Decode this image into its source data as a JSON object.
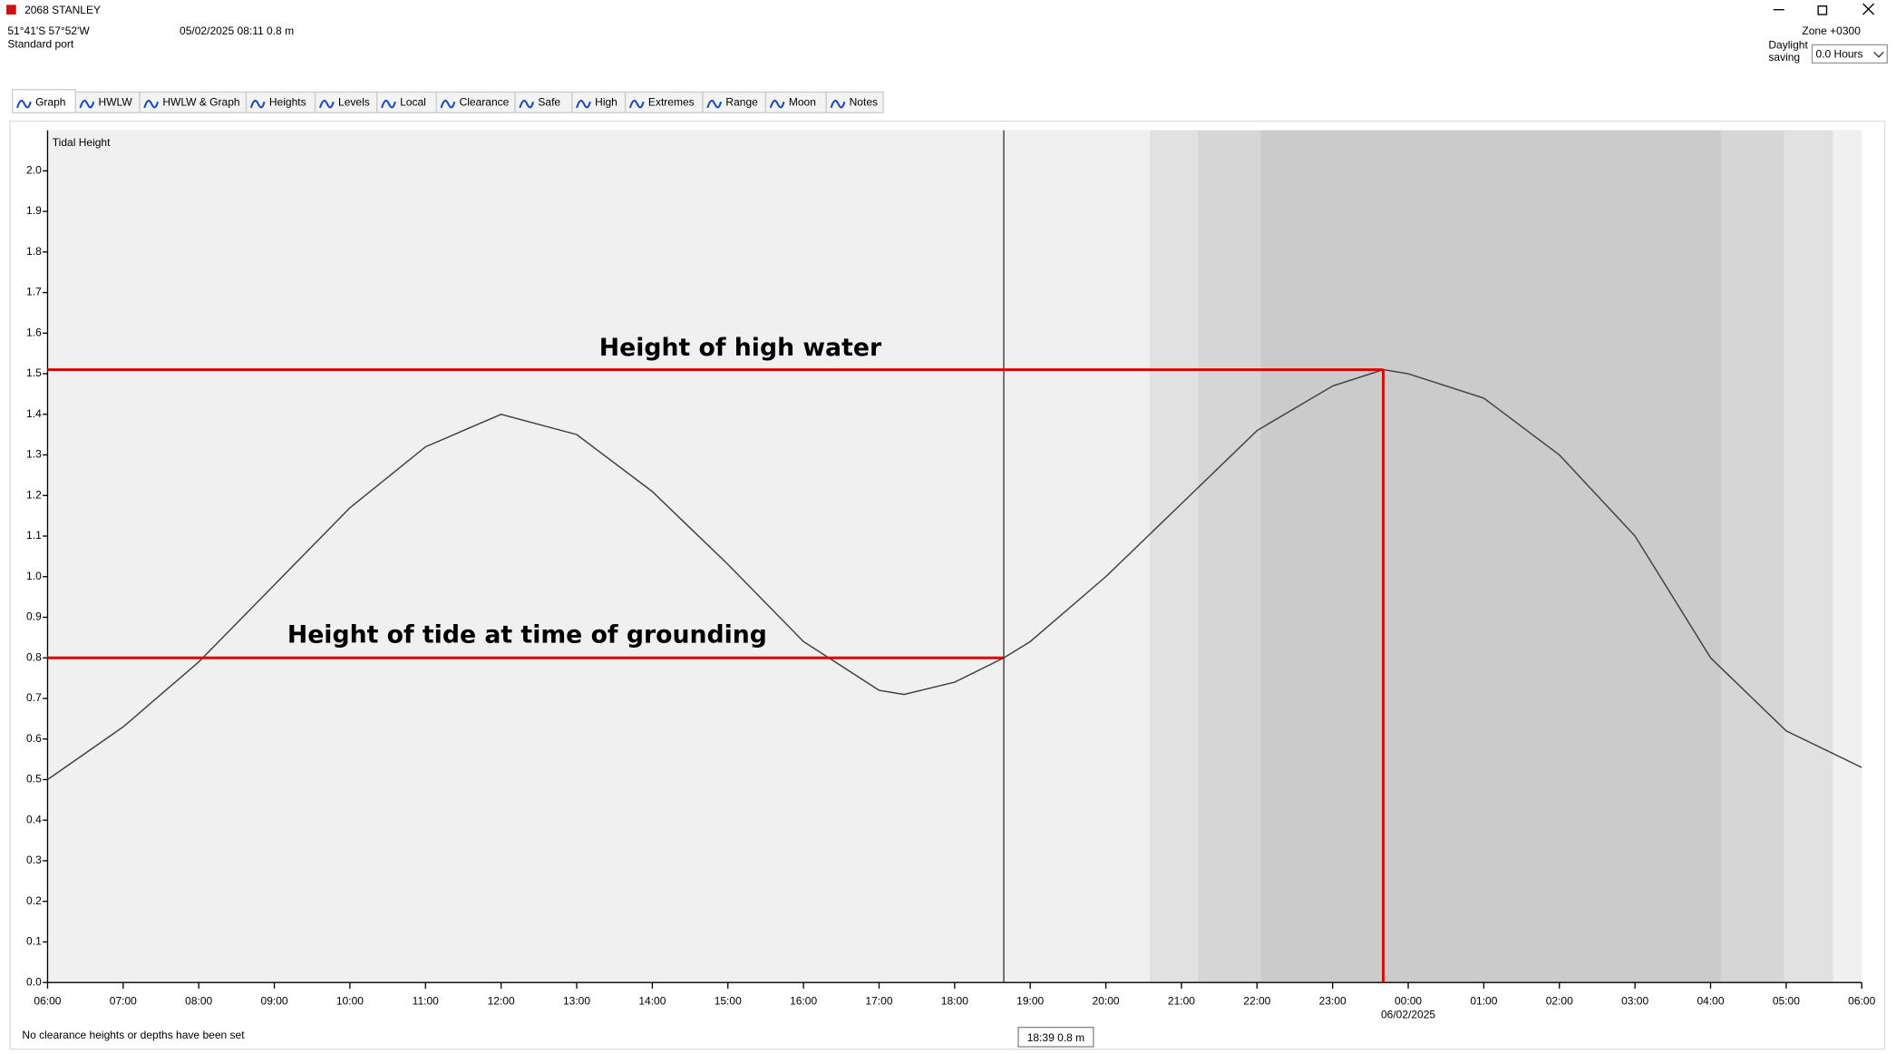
{
  "window": {
    "title": "2068  STANLEY"
  },
  "header": {
    "position": "51°41'S 57°52'W",
    "port_type": "Standard port",
    "reading": "05/02/2025 08:11  0.8 m",
    "zone": "Zone  +0300",
    "daylight_label": "Daylight saving",
    "daylight_value": "0.0 Hours"
  },
  "tabs": [
    "Graph",
    "HWLW",
    "HWLW & Graph",
    "Heights",
    "Levels",
    "Local",
    "Clearance",
    "Safe",
    "High",
    "Extremes",
    "Range",
    "Moon",
    "Notes"
  ],
  "chart_data": {
    "type": "line",
    "y_label": "Tidal Height",
    "color": "#404040",
    "x": [
      0,
      1,
      2,
      3,
      4,
      5,
      6,
      7,
      8,
      9,
      10,
      11,
      11.33,
      12,
      12.65,
      13,
      14,
      15,
      16,
      17,
      17.67,
      18,
      19,
      20,
      21,
      22,
      23,
      24
    ],
    "values": [
      0.5,
      0.63,
      0.79,
      0.98,
      1.17,
      1.32,
      1.4,
      1.35,
      1.21,
      1.03,
      0.84,
      0.72,
      0.71,
      0.74,
      0.8,
      0.84,
      1.0,
      1.18,
      1.36,
      1.47,
      1.51,
      1.5,
      1.44,
      1.3,
      1.1,
      0.8,
      0.62,
      0.53
    ],
    "xlim": [
      0,
      24
    ],
    "ylim": [
      0,
      2.1
    ],
    "xticks": [
      {
        "value": 0,
        "label": "06:00"
      },
      {
        "value": 1,
        "label": "07:00"
      },
      {
        "value": 2,
        "label": "08:00"
      },
      {
        "value": 3,
        "label": "09:00"
      },
      {
        "value": 4,
        "label": "10:00"
      },
      {
        "value": 5,
        "label": "11:00"
      },
      {
        "value": 6,
        "label": "12:00"
      },
      {
        "value": 7,
        "label": "13:00"
      },
      {
        "value": 8,
        "label": "14:00"
      },
      {
        "value": 9,
        "label": "15:00"
      },
      {
        "value": 10,
        "label": "16:00"
      },
      {
        "value": 11,
        "label": "17:00"
      },
      {
        "value": 12,
        "label": "18:00"
      },
      {
        "value": 13,
        "label": "19:00"
      },
      {
        "value": 14,
        "label": "20:00"
      },
      {
        "value": 15,
        "label": "21:00"
      },
      {
        "value": 16,
        "label": "22:00"
      },
      {
        "value": 17,
        "label": "23:00"
      },
      {
        "value": 18,
        "label": "00:00"
      },
      {
        "value": 19,
        "label": "01:00"
      },
      {
        "value": 20,
        "label": "02:00"
      },
      {
        "value": 21,
        "label": "03:00"
      },
      {
        "value": 22,
        "label": "04:00"
      },
      {
        "value": 23,
        "label": "05:00"
      },
      {
        "value": 24,
        "label": "06:00"
      }
    ],
    "date_label": "06/02/2025",
    "yticks": [
      {
        "value": 0,
        "label": "0.0"
      },
      0.1,
      0.2,
      0.3,
      0.4,
      0.5,
      0.6,
      0.7,
      0.8,
      0.9,
      {
        "value": 1,
        "label": "1.0"
      },
      1.1,
      1.2,
      1.3,
      1.4,
      1.5,
      1.6,
      1.7,
      1.8,
      1.9,
      {
        "value": 2,
        "label": "2.0"
      }
    ],
    "night_bands": [
      {
        "start": 14.58,
        "end": 23.62,
        "color": "#e1e1e1"
      },
      {
        "start": 15.22,
        "end": 22.97,
        "color": "#d6d6d6"
      },
      {
        "start": 16.05,
        "end": 22.14,
        "color": "#cbcbcb"
      }
    ],
    "cursor_x": 12.65,
    "cursor_label": "18:39 0.8 m",
    "reference_color": "#e00000",
    "reference_lines": [
      {
        "y": 0.8,
        "x_to": 12.65,
        "label": "Height of tide at time of grounding"
      },
      {
        "y": 1.51,
        "x_to": 17.67,
        "label": "Height of high water"
      }
    ],
    "drop_line": {
      "x": 17.67,
      "y": 1.51
    }
  },
  "footer": {
    "status": "No clearance heights or depths have been set"
  }
}
